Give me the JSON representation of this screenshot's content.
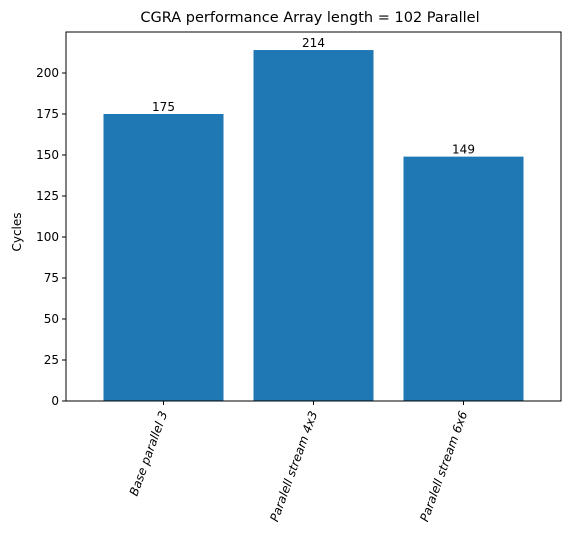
{
  "chart_data": {
    "type": "bar",
    "title": "CGRA performance Array length = 102 Parallel",
    "xlabel": "",
    "ylabel": "Cycles",
    "categories": [
      "Base parallel 3",
      "Paralell stream 4x3",
      "Paralell stream 6x6"
    ],
    "values": [
      175,
      214,
      149
    ],
    "data_labels": [
      "175",
      "214",
      "149"
    ],
    "ylim": [
      0,
      225
    ],
    "yticks": [
      0,
      25,
      50,
      75,
      100,
      125,
      150,
      175,
      200
    ],
    "grid": false,
    "bar_color": "#1f77b4",
    "x_tick_rotation_deg": -70
  }
}
